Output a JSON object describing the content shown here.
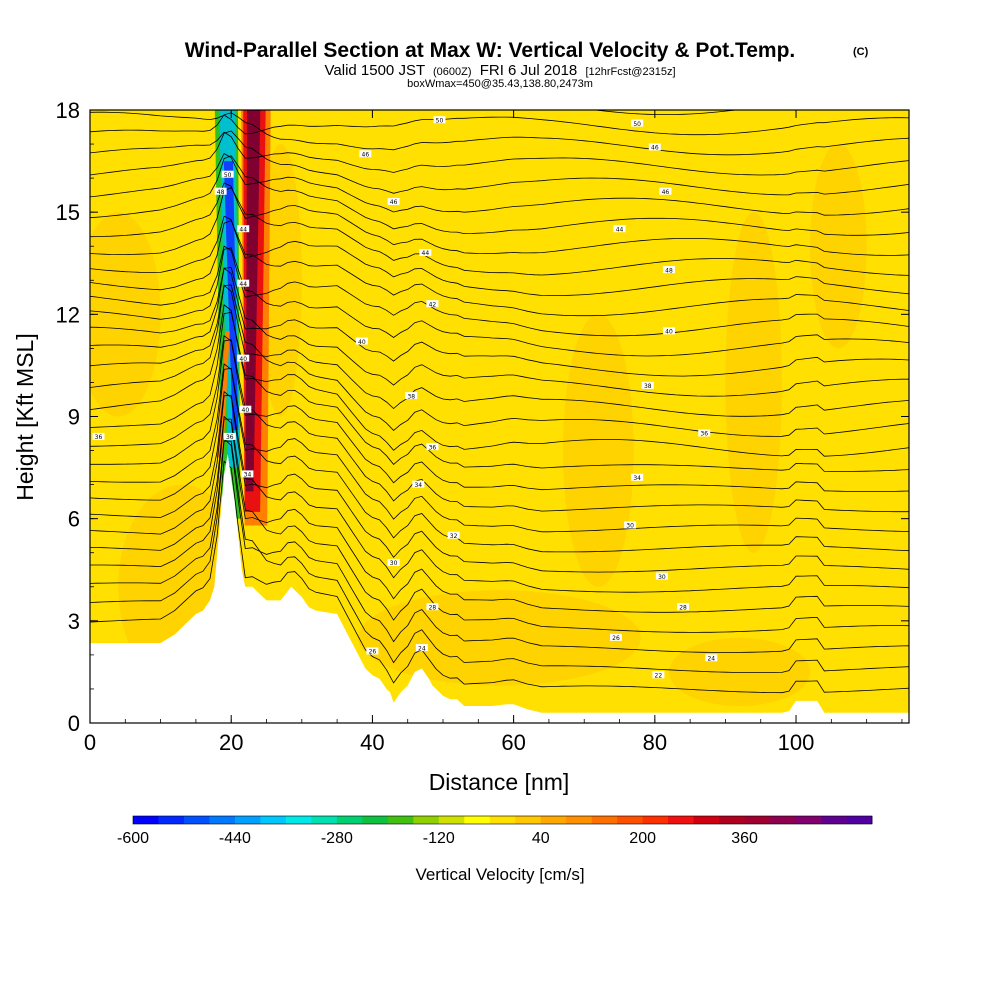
{
  "chart_data": {
    "type": "heatmap",
    "title": "Wind-Parallel Section at Max W: Vertical Velocity & Pot.Temp.",
    "title_mark": "(C)",
    "subtitle": {
      "valid": "Valid 1500 JST",
      "utc": "(0600Z)",
      "date": "FRI 6 Jul 2018",
      "fcst": "[12hrFcst@2315z]"
    },
    "boxinfo": "boxWmax=450@35.43,138.80,2473m",
    "xlabel": "Distance [nm]",
    "ylabel": "Height [Kft MSL]",
    "xlim": [
      0,
      116
    ],
    "ylim": [
      0,
      18
    ],
    "x_ticks": [
      0,
      20,
      40,
      60,
      80,
      100
    ],
    "y_ticks": [
      0,
      3,
      6,
      9,
      12,
      15,
      18
    ],
    "background_fill": "#ffe000",
    "fill_colors": {
      "neutral": "#ffe000",
      "weak_up": "#ffd000",
      "up_orange": "#ff8000",
      "up_red": "#e81010",
      "up_max": "#800030",
      "down_green": "#30c020",
      "down_cyan": "#00c0d0",
      "down_blue": "#1040ff",
      "terrain": "#ffffff"
    },
    "updraft_core": {
      "description_values": "band of strong ascent rising from ridge at ~20nm to model top",
      "w_max_cms": 450,
      "x_range_nm": [
        20.5,
        26
      ],
      "z_range_kft": [
        6,
        18
      ]
    },
    "downdraft_core": {
      "w_min_cms": -600,
      "x_range_nm": [
        17,
        21
      ],
      "z_range_kft": [
        8,
        18
      ]
    },
    "terrain_profile_kft": {
      "x": [
        0,
        10,
        12,
        13,
        14,
        15,
        16,
        17,
        17.6,
        19,
        19.5,
        20.5,
        21.5,
        22,
        23,
        24,
        25,
        27,
        28.5,
        30,
        31,
        32,
        35,
        37,
        38,
        39,
        40,
        41,
        42,
        42.5,
        43,
        44,
        45,
        46,
        47,
        48,
        48.5,
        49,
        50,
        51,
        52,
        53,
        55,
        57,
        59,
        60,
        62,
        64,
        66,
        67,
        68,
        70,
        72,
        74,
        76,
        78,
        80,
        82,
        84,
        86,
        88,
        90,
        92,
        94,
        96,
        98,
        99,
        100,
        101,
        102,
        103,
        104,
        105,
        106,
        108,
        110,
        112,
        114,
        116
      ],
      "z": [
        2.35,
        2.35,
        2.6,
        2.8,
        3.0,
        3.2,
        3.3,
        3.6,
        4.0,
        7.3,
        7.9,
        6.5,
        4.5,
        4.0,
        4.0,
        3.8,
        3.6,
        3.6,
        4.0,
        3.7,
        3.4,
        3.3,
        3.2,
        2.4,
        2.0,
        1.6,
        1.4,
        1.3,
        1.0,
        0.9,
        0.6,
        0.9,
        1.1,
        1.5,
        1.6,
        1.3,
        1.1,
        1.0,
        0.8,
        0.7,
        0.7,
        0.5,
        0.5,
        0.5,
        0.55,
        0.55,
        0.4,
        0.3,
        0.3,
        0.3,
        0.3,
        0.3,
        0.3,
        0.3,
        0.3,
        0.3,
        0.3,
        0.3,
        0.3,
        0.3,
        0.3,
        0.3,
        0.3,
        0.3,
        0.3,
        0.3,
        0.35,
        0.65,
        0.65,
        0.65,
        0.65,
        0.3,
        0.3,
        0.3,
        0.3,
        0.3,
        0.3,
        0.3,
        0.3
      ]
    },
    "theta_contour_labels": [
      {
        "value": "50",
        "x": 49.5,
        "y": 17.7
      },
      {
        "value": "50",
        "x": 77.5,
        "y": 17.6
      },
      {
        "value": "46",
        "x": 39,
        "y": 16.7
      },
      {
        "value": "46",
        "x": 80,
        "y": 16.9
      },
      {
        "value": "46",
        "x": 43,
        "y": 15.3
      },
      {
        "value": "46",
        "x": 81.5,
        "y": 15.6
      },
      {
        "value": "44",
        "x": 75,
        "y": 14.5
      },
      {
        "value": "44",
        "x": 47.5,
        "y": 13.8
      },
      {
        "value": "48",
        "x": 82,
        "y": 13.3
      },
      {
        "value": "42",
        "x": 48.5,
        "y": 12.3
      },
      {
        "value": "40",
        "x": 82,
        "y": 11.5
      },
      {
        "value": "40",
        "x": 38.5,
        "y": 11.2
      },
      {
        "value": "38",
        "x": 79,
        "y": 9.9
      },
      {
        "value": "38",
        "x": 45.5,
        "y": 9.6
      },
      {
        "value": "36",
        "x": 87,
        "y": 8.5
      },
      {
        "value": "36",
        "x": 1.2,
        "y": 8.4
      },
      {
        "value": "36",
        "x": 48.5,
        "y": 8.1
      },
      {
        "value": "34",
        "x": 77.5,
        "y": 7.2
      },
      {
        "value": "34",
        "x": 46.5,
        "y": 7.0
      },
      {
        "value": "30",
        "x": 76.5,
        "y": 5.8
      },
      {
        "value": "32",
        "x": 51.5,
        "y": 5.5
      },
      {
        "value": "30",
        "x": 43,
        "y": 4.7
      },
      {
        "value": "30",
        "x": 81,
        "y": 4.3
      },
      {
        "value": "28",
        "x": 48.5,
        "y": 3.4
      },
      {
        "value": "28",
        "x": 84,
        "y": 3.4
      },
      {
        "value": "26",
        "x": 74.5,
        "y": 2.5
      },
      {
        "value": "26",
        "x": 40,
        "y": 2.1
      },
      {
        "value": "24",
        "x": 47,
        "y": 2.2
      },
      {
        "value": "24",
        "x": 88,
        "y": 1.9
      },
      {
        "value": "22",
        "x": 80.5,
        "y": 1.4
      },
      {
        "value": "50",
        "x": 19.5,
        "y": 16.1
      },
      {
        "value": "48",
        "x": 18.5,
        "y": 15.6
      },
      {
        "value": "44",
        "x": 21.7,
        "y": 14.5
      },
      {
        "value": "44",
        "x": 21.7,
        "y": 12.9
      },
      {
        "value": "40",
        "x": 21.7,
        "y": 10.7
      },
      {
        "value": "40",
        "x": 22,
        "y": 9.2
      },
      {
        "value": "36",
        "x": 19.8,
        "y": 8.4
      },
      {
        "value": "34",
        "x": 22.3,
        "y": 7.3
      }
    ],
    "colorbar": {
      "label": "Vertical Velocity [cm/s]",
      "tick_labels": [
        "-600",
        "-440",
        "-280",
        "-120",
        "40",
        "200",
        "360"
      ],
      "colors": [
        "#0000ff",
        "#0028ff",
        "#0050ff",
        "#0078ff",
        "#00a0ff",
        "#00c8ff",
        "#00e8e8",
        "#00e0b0",
        "#00d070",
        "#10c040",
        "#40c010",
        "#90d000",
        "#d0e000",
        "#ffff00",
        "#ffe000",
        "#ffc800",
        "#ffa800",
        "#ff9000",
        "#ff7000",
        "#ff5000",
        "#ff3000",
        "#f01010",
        "#d00010",
        "#b00020",
        "#a00030",
        "#900050",
        "#800070",
        "#600090",
        "#5000a0"
      ]
    }
  }
}
